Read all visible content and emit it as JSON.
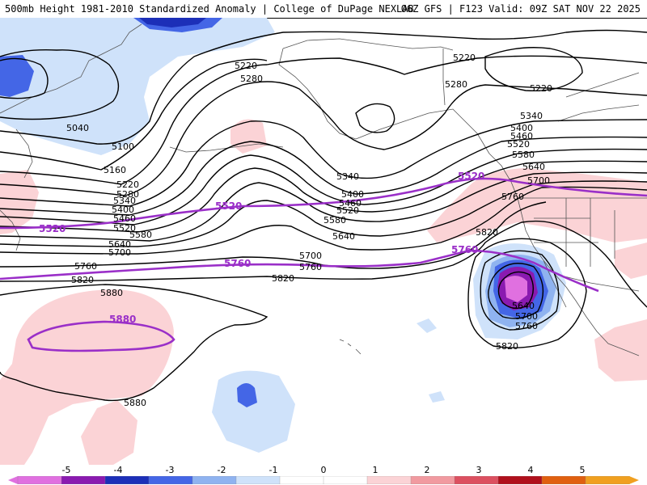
{
  "title": {
    "left": "500mb Height 1981-2010 Standardized Anomaly | College of DuPage NEXLAB",
    "right": "06Z GFS | F123 Valid: 09Z SAT NOV 22 2025"
  },
  "contour_labels": {
    "c5040": "5040",
    "c5100": "5100",
    "c5160": "5160",
    "c5220w": "5220",
    "c5280w": "5280",
    "c5340w": "5340",
    "c5400w": "5400",
    "c5460w": "5460",
    "c5520w": "5520",
    "c5580w": "5580",
    "c5640w": "5640",
    "c5700w": "5700",
    "c5760w": "5760",
    "c5820w": "5820",
    "c5880w": "5880",
    "c5220n": "5220",
    "c5280n": "5280",
    "c5340m": "5340",
    "c5400m": "5400",
    "c5460m": "5460",
    "c5520m": "5520",
    "c5580m": "5580",
    "c5640m": "5640",
    "c5700m": "5700",
    "c5760m": "5760",
    "c5820m": "5820",
    "c5220ne": "5220",
    "c5280ne": "5280",
    "c5220e": "5220",
    "c5340e": "5340",
    "c5400e": "5400",
    "c5460e": "5460",
    "c5520e": "5520",
    "c5580e": "5580",
    "c5640e": "5640",
    "c5700e": "5700",
    "c5760e": "5760",
    "c5820e": "5820",
    "c5640low": "5640",
    "c5700low": "5700",
    "c5760low": "5760",
    "c5820s": "5820",
    "c5880s": "5880"
  },
  "normal_labels": {
    "n5520w": "5520",
    "n5520m": "5520",
    "n5520e": "5520",
    "n5760m": "5760",
    "n5760e": "5760",
    "n5880": "5880"
  },
  "colorbar": {
    "labels": [
      "-5",
      "-4",
      "-3",
      "-2",
      "-1",
      "0",
      "1",
      "2",
      "3",
      "4",
      "5"
    ],
    "colors": [
      "#e070e0",
      "#8a1ab0",
      "#1c2fb8",
      "#4466e6",
      "#8fb3f0",
      "#cfe2fa",
      "#ffffff",
      "#ffffff",
      "#fbd3d6",
      "#f19aa0",
      "#dc5060",
      "#b0101c",
      "#e06010",
      "#f0a020"
    ]
  },
  "colors": {
    "contour": "#000000",
    "normal": "#9a2fc8",
    "coast": "#555555",
    "neg1": "#cfe2fa",
    "neg2": "#8fb3f0",
    "neg3": "#4466e6",
    "neg4": "#8a1ab0",
    "neg5": "#e070e0",
    "pos1": "#fbd3d6"
  }
}
